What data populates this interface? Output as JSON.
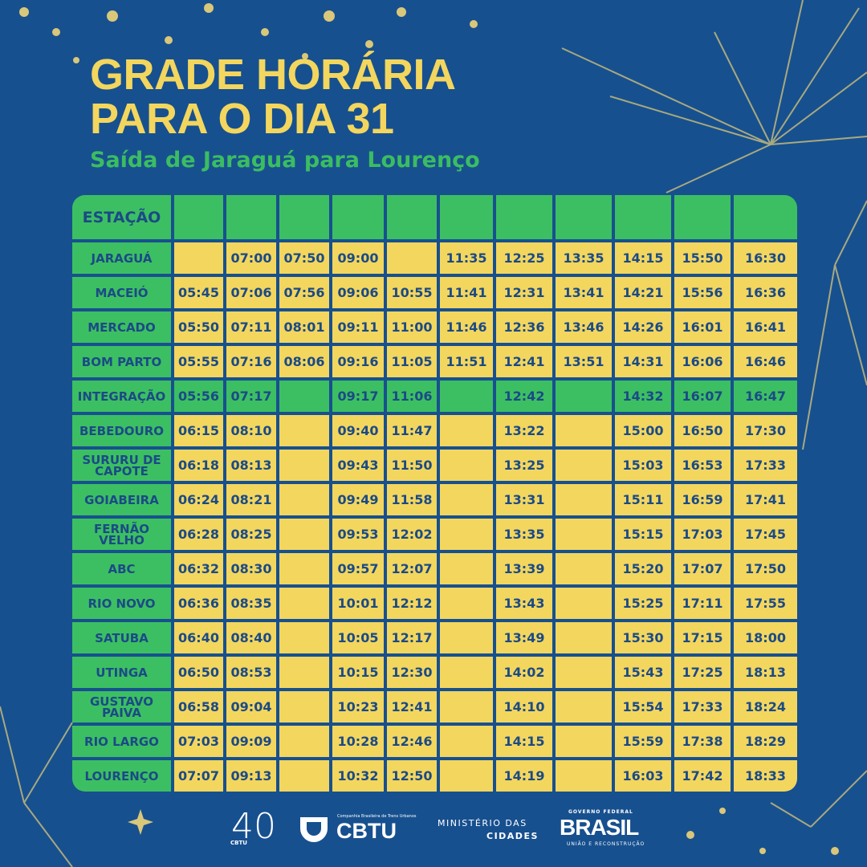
{
  "header": {
    "title": [
      "GRADE HORÁRIA",
      "PARA O DIA 31"
    ],
    "subtitle": "Saída de Jaraguá para Lourenço"
  },
  "table": {
    "column_header": "ESTAÇÃO",
    "rows": [
      {
        "station": "JARAGUÁ",
        "times": [
          null,
          "07:00",
          "07:50",
          "09:00",
          null,
          "11:35",
          "12:25",
          "13:35",
          "14:15",
          "15:50",
          "16:30"
        ]
      },
      {
        "station": "MACEIÓ",
        "times": [
          "05:45",
          "07:06",
          "07:56",
          "09:06",
          "10:55",
          "11:41",
          "12:31",
          "13:41",
          "14:21",
          "15:56",
          "16:36"
        ]
      },
      {
        "station": "MERCADO",
        "times": [
          "05:50",
          "07:11",
          "08:01",
          "09:11",
          "11:00",
          "11:46",
          "12:36",
          "13:46",
          "14:26",
          "16:01",
          "16:41"
        ]
      },
      {
        "station": "BOM PARTO",
        "times": [
          "05:55",
          "07:16",
          "08:06",
          "09:16",
          "11:05",
          "11:51",
          "12:41",
          "13:51",
          "14:31",
          "16:06",
          "16:46"
        ]
      },
      {
        "station": "INTEGRAÇÃO",
        "highlight": true,
        "times": [
          "05:56",
          "07:17",
          null,
          "09:17",
          "11:06",
          null,
          "12:42",
          null,
          "14:32",
          "16:07",
          "16:47"
        ]
      },
      {
        "station": "BEBEDOURO",
        "times": [
          "06:15",
          "08:10",
          null,
          "09:40",
          "11:47",
          null,
          "13:22",
          null,
          "15:00",
          "16:50",
          "17:30"
        ]
      },
      {
        "station": "SURURU DE CAPOTE",
        "times": [
          "06:18",
          "08:13",
          null,
          "09:43",
          "11:50",
          null,
          "13:25",
          null,
          "15:03",
          "16:53",
          "17:33"
        ]
      },
      {
        "station": "GOIABEIRA",
        "times": [
          "06:24",
          "08:21",
          null,
          "09:49",
          "11:58",
          null,
          "13:31",
          null,
          "15:11",
          "16:59",
          "17:41"
        ]
      },
      {
        "station": "FERNÃO VELHO",
        "times": [
          "06:28",
          "08:25",
          null,
          "09:53",
          "12:02",
          null,
          "13:35",
          null,
          "15:15",
          "17:03",
          "17:45"
        ]
      },
      {
        "station": "ABC",
        "times": [
          "06:32",
          "08:30",
          null,
          "09:57",
          "12:07",
          null,
          "13:39",
          null,
          "15:20",
          "17:07",
          "17:50"
        ]
      },
      {
        "station": "RIO NOVO",
        "times": [
          "06:36",
          "08:35",
          null,
          "10:01",
          "12:12",
          null,
          "13:43",
          null,
          "15:25",
          "17:11",
          "17:55"
        ]
      },
      {
        "station": "SATUBA",
        "times": [
          "06:40",
          "08:40",
          null,
          "10:05",
          "12:17",
          null,
          "13:49",
          null,
          "15:30",
          "17:15",
          "18:00"
        ]
      },
      {
        "station": "UTINGA",
        "times": [
          "06:50",
          "08:53",
          null,
          "10:15",
          "12:30",
          null,
          "14:02",
          null,
          "15:43",
          "17:25",
          "18:13"
        ]
      },
      {
        "station": "GUSTAVO PAIVA",
        "times": [
          "06:58",
          "09:04",
          null,
          "10:23",
          "12:41",
          null,
          "14:10",
          null,
          "15:54",
          "17:33",
          "18:24"
        ]
      },
      {
        "station": "RIO LARGO",
        "times": [
          "07:03",
          "09:09",
          null,
          "10:28",
          "12:46",
          null,
          "14:15",
          null,
          "15:59",
          "17:38",
          "18:29"
        ]
      },
      {
        "station": "LOURENÇO",
        "times": [
          "07:07",
          "09:13",
          null,
          "10:32",
          "12:50",
          null,
          "14:19",
          null,
          "16:03",
          "17:42",
          "18:33"
        ]
      }
    ]
  },
  "footer": {
    "cbtu40_number": "40",
    "cbtu40_label": "CBTU",
    "cbtu_company": "Companhia Brasileira de Trens Urbanos",
    "cbtu": "CBTU",
    "ministry": [
      "MINISTÉRIO DAS",
      "CIDADES"
    ],
    "gov_top": "GOVERNO FEDERAL",
    "brasil": "BRASIL",
    "gov_bottom": "UNIÃO E RECONSTRUÇÃO"
  }
}
